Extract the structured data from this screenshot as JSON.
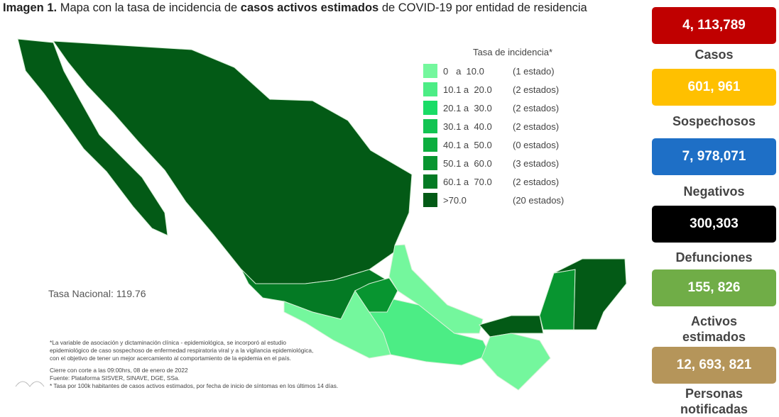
{
  "title": {
    "parts": [
      "Imagen 1.",
      " Mapa con la tasa de incidencia de ",
      "casos activos estimados",
      " de COVID-19 por entidad de residencia"
    ]
  },
  "legend": {
    "title": "Tasa de incidencia*",
    "items": [
      {
        "range": "0   a  10.0",
        "count": "(1 estado)",
        "color": "#74f79d"
      },
      {
        "range": "10.1 a  20.0",
        "count": "(2 estados)",
        "color": "#4ced85"
      },
      {
        "range": "20.1 a  30.0",
        "count": "(2 estados)",
        "color": "#19dc66"
      },
      {
        "range": "30.1 a  40.0",
        "count": "(2 estados)",
        "color": "#12c452"
      },
      {
        "range": "40.1 a  50.0",
        "count": "(0 estados)",
        "color": "#0cae3f"
      },
      {
        "range": "50.1 a  60.0",
        "count": "(3 estados)",
        "color": "#089530"
      },
      {
        "range": "60.1 a  70.0",
        "count": "(2 estados)",
        "color": "#047a24"
      },
      {
        "range": ">70.0",
        "count": "(20 estados)",
        "color": "#035a16"
      }
    ]
  },
  "national_rate": "Tasa Nacional: 119.76",
  "footnotes": [
    "*La variable de asociación y dictaminación clínica - epidemiológica, se incorporó al estudio",
    "epidemiológico de caso sospechoso de enfermedad respiratoria viral y a la vigilancia epidemiológica,",
    "con el objetivo de tener un mejor acercamiento al comportamiento de la epidemia en el país.",
    "Cierre con corte a las 09:00hrs, 08 de enero de 2022",
    "Fuente: Plataforma SISVER, SINAVE, DGE, SSa.",
    "* Tasa por 100k habitantes de casos activos estimados, por fecha de inicio de síntomas en los últimos 14 días."
  ],
  "stats": [
    {
      "value": "4, 113,789",
      "label": "Casos",
      "color": "#c00000"
    },
    {
      "value": "601, 961",
      "label": "Sospechosos",
      "color": "#ffc000"
    },
    {
      "value": "7, 978,071",
      "label": "Negativos",
      "color": "#1e6fc6"
    },
    {
      "value": "300,303",
      "label": "Defunciones",
      "color": "#000000"
    },
    {
      "value": "155, 826",
      "label": "Activos\nestimados",
      "color": "#70ad47"
    },
    {
      "value": "12, 693, 821",
      "label": "Personas\nnotificadas",
      "color": "#b5955a"
    }
  ]
}
